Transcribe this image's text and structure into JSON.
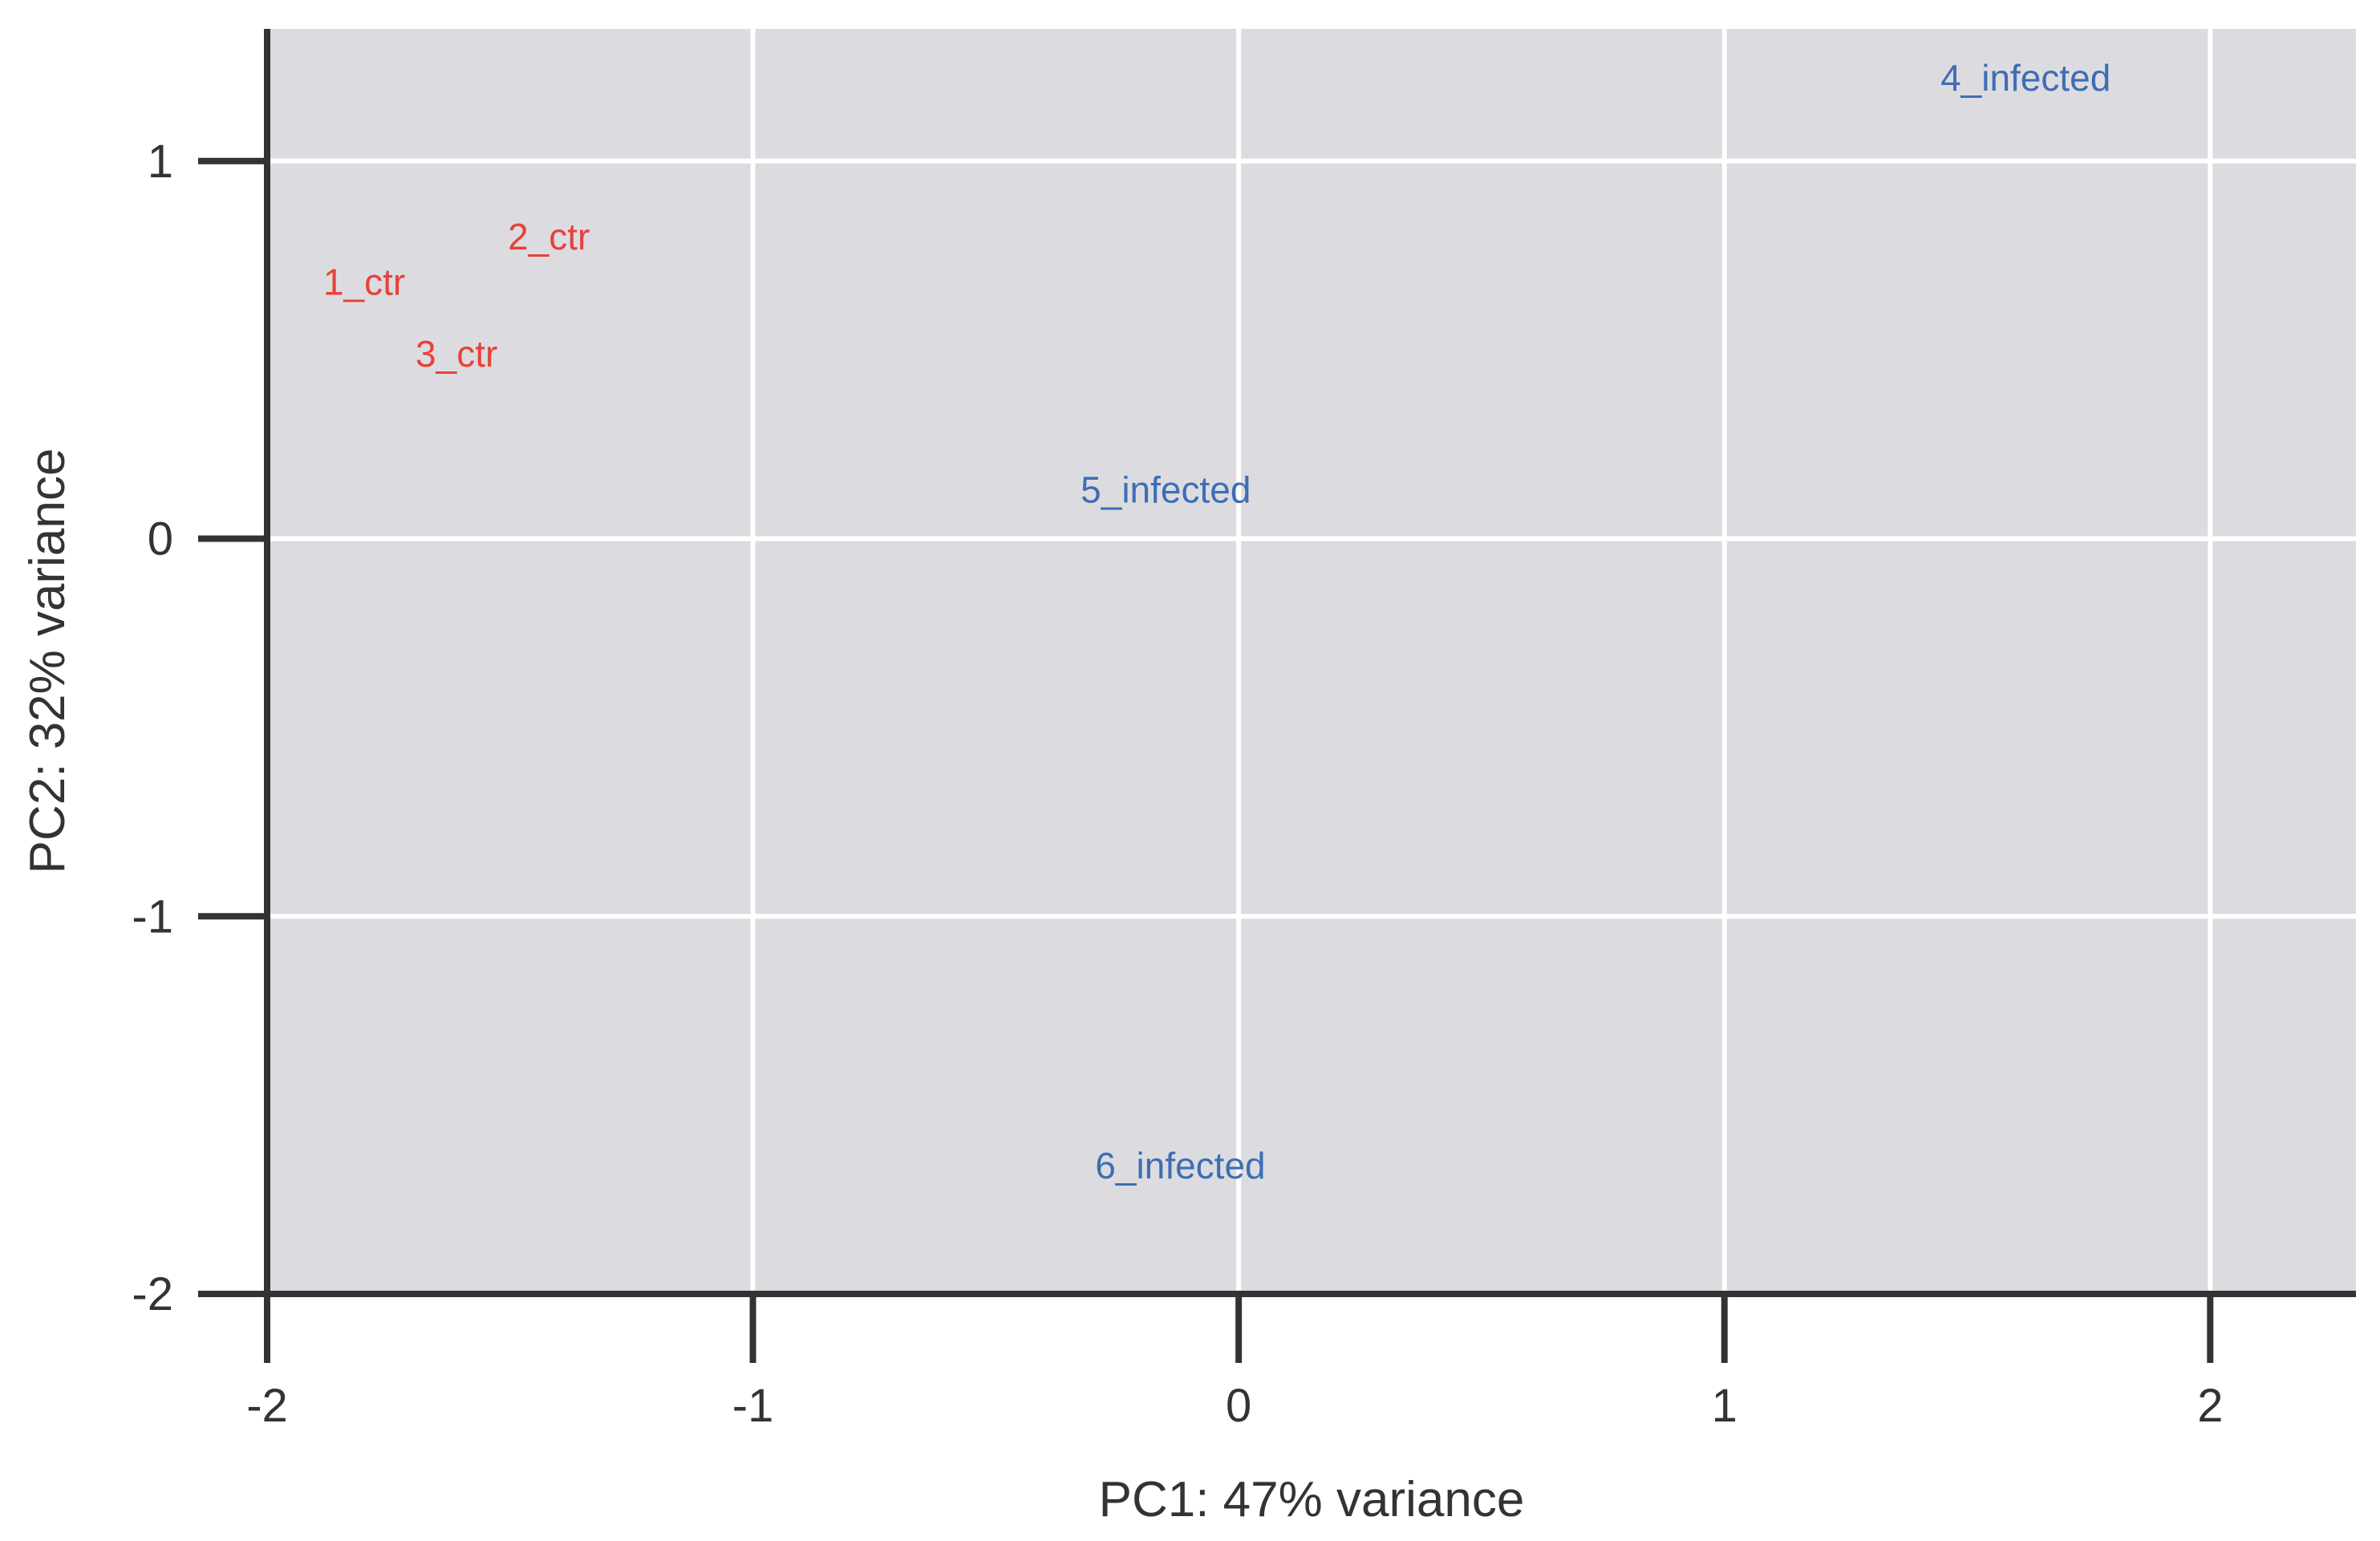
{
  "chart_data": {
    "type": "scatter",
    "xlabel": "PC1: 47% variance",
    "ylabel": "PC2: 32% variance",
    "xlim": [
      -2,
      2.3
    ],
    "ylim": [
      -2,
      1.35
    ],
    "x_ticks": [
      -2,
      -1,
      0,
      1,
      2
    ],
    "y_ticks": [
      -2,
      -1,
      0,
      1
    ],
    "x_tick_labels": [
      "-2",
      "-1",
      "0",
      "1",
      "2"
    ],
    "y_tick_labels": [
      "-2",
      "-1",
      "0",
      "1"
    ],
    "grid": true,
    "legend": "none",
    "colors": {
      "ctr": "#e8413a",
      "infected": "#3e6db5",
      "panel": "#dcdce0",
      "grid": "#ffffff",
      "axis": "#333333"
    },
    "points": [
      {
        "label": "1_ctr",
        "group": "ctr",
        "x": -1.8,
        "y": 0.68
      },
      {
        "label": "2_ctr",
        "group": "ctr",
        "x": -1.42,
        "y": 0.8
      },
      {
        "label": "3_ctr",
        "group": "ctr",
        "x": -1.61,
        "y": 0.49
      },
      {
        "label": "4_infected",
        "group": "infected",
        "x": 1.62,
        "y": 1.22
      },
      {
        "label": "5_infected",
        "group": "infected",
        "x": -0.15,
        "y": 0.13
      },
      {
        "label": "6_infected",
        "group": "infected",
        "x": -0.12,
        "y": -1.66
      }
    ]
  }
}
